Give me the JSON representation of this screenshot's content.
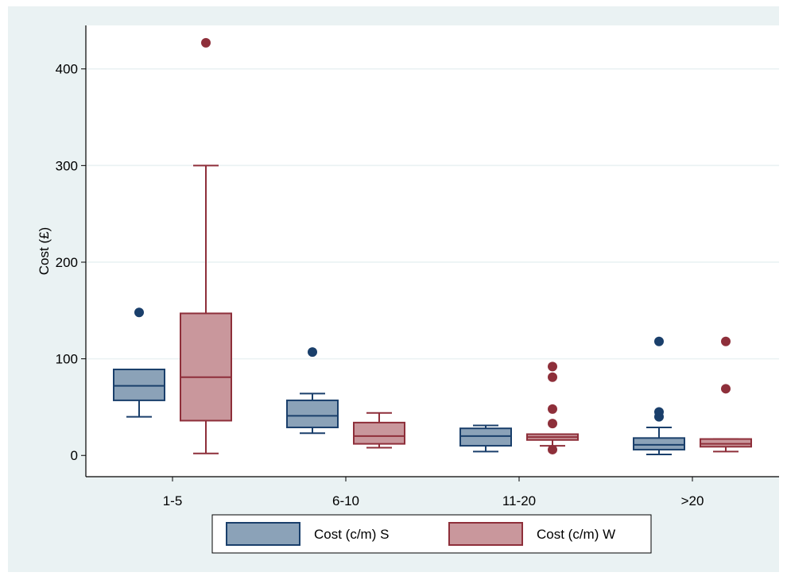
{
  "chart_data": {
    "type": "box",
    "title": "",
    "xlabel": "",
    "ylabel": "Cost (£)",
    "ylim": [
      -22,
      445
    ],
    "yticks": [
      0,
      100,
      200,
      300,
      400
    ],
    "grid": true,
    "legend_position": "bottom",
    "categories": [
      "1-5",
      "6-10",
      "11-20",
      ">20"
    ],
    "series": [
      {
        "name": "Cost (c/m) S",
        "fill": "#8ba2b8",
        "stroke": "#1a3f6b",
        "boxes": [
          {
            "q1": 57,
            "median": 72,
            "q3": 89,
            "whisker_low": 40,
            "whisker_high": 89,
            "outliers": [
              148
            ]
          },
          {
            "q1": 29,
            "median": 41,
            "q3": 57,
            "whisker_low": 23,
            "whisker_high": 64,
            "outliers": [
              107
            ]
          },
          {
            "q1": 10,
            "median": 20,
            "q3": 28,
            "whisker_low": 4,
            "whisker_high": 31,
            "outliers": []
          },
          {
            "q1": 6,
            "median": 11,
            "q3": 18,
            "whisker_low": 1,
            "whisker_high": 29,
            "outliers": [
              40,
              45,
              118
            ]
          }
        ]
      },
      {
        "name": "Cost (c/m)  W",
        "fill": "#c9979c",
        "stroke": "#8e2f3a",
        "boxes": [
          {
            "q1": 36,
            "median": 81,
            "q3": 147,
            "whisker_low": 2,
            "whisker_high": 300,
            "outliers": [
              427
            ]
          },
          {
            "q1": 12,
            "median": 20,
            "q3": 34,
            "whisker_low": 8,
            "whisker_high": 44,
            "outliers": []
          },
          {
            "q1": 16,
            "median": 19,
            "q3": 22,
            "whisker_low": 10,
            "whisker_high": 22,
            "outliers": [
              6,
              33,
              48,
              81,
              92
            ]
          },
          {
            "q1": 9,
            "median": 12,
            "q3": 17,
            "whisker_low": 4,
            "whisker_high": 17,
            "outliers": [
              69,
              118
            ]
          }
        ]
      }
    ]
  }
}
